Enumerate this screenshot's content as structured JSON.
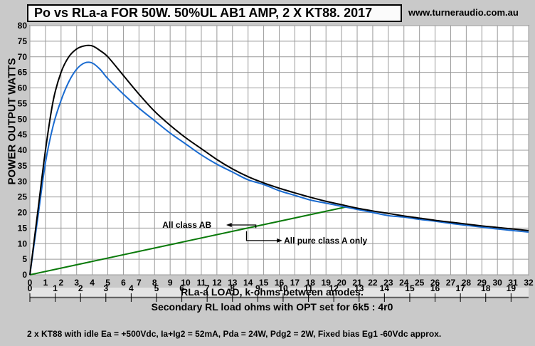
{
  "title": "Po vs RLa-a FOR 50W. 50%UL  AB1 AMP, 2 X KT88. 2017",
  "website": "www.turneraudio.com.au",
  "footnote": "2 x KT88 with idle Ea = +500Vdc, Ia+Ig2 = 52mA, Pda = 24W, Pdg2 = 2W, Fixed bias Eg1 -60Vdc approx.",
  "colors": {
    "background": "#c9c9c9",
    "plot_area": "#ffffff",
    "total": "#000000",
    "class_a": "#1a6bd0",
    "class_ab_limit": "#0a7a0a"
  },
  "chart_data": {
    "type": "line",
    "title": "Po vs RLa-a FOR 50W. 50%UL  AB1 AMP, 2 X KT88. 2017",
    "xlabel": "RLa-a LOAD, k-ohms between anodes.",
    "ylabel": "POWER OUTPUT WATTS",
    "xlim": [
      0,
      32
    ],
    "ylim": [
      0,
      80
    ],
    "grid": true,
    "x_ticks": [
      "0",
      "1",
      "2",
      "3",
      "4",
      "5",
      "6",
      "7",
      "8",
      "9",
      "10",
      "11",
      "12",
      "13",
      "14",
      "15",
      "16",
      "17",
      "18",
      "19",
      "20",
      "21",
      "22",
      "23",
      "24",
      "25",
      "26",
      "27",
      "28",
      "29",
      "30",
      "31",
      "32"
    ],
    "y_ticks": [
      "0",
      "5",
      "10",
      "15",
      "20",
      "25",
      "30",
      "35",
      "40",
      "45",
      "50",
      "55",
      "60",
      "65",
      "70",
      "75",
      "80"
    ],
    "secondary_axis": {
      "label": "Secondary RL load ohms with OPT set for 6k5 : 4r0",
      "ticks": [
        "0",
        "1",
        "2",
        "3",
        "4",
        "5",
        "6",
        "7",
        "8",
        "9",
        "10",
        "11",
        "12",
        "13",
        "14",
        "15",
        "16",
        "17",
        "18",
        "19"
      ],
      "ohms_per_kohm_primary": 0.6154
    },
    "series": [
      {
        "key": "total",
        "x": [
          0,
          0.5,
          1,
          1.5,
          2,
          2.5,
          3,
          3.5,
          4,
          4.5,
          5,
          6,
          7,
          8,
          9,
          10,
          11,
          12,
          13,
          14,
          15,
          16,
          17,
          18,
          19,
          20,
          21,
          22,
          23,
          24,
          25,
          26,
          27,
          28,
          29,
          30,
          31,
          32
        ],
        "y": [
          0,
          20,
          40,
          56,
          65,
          70,
          72.5,
          73.5,
          73.5,
          72,
          70,
          64,
          58,
          52.5,
          48,
          44,
          40.5,
          37,
          34,
          31.5,
          29.5,
          27.8,
          26.3,
          24.9,
          23.6,
          22.5,
          21.4,
          20.5,
          19.7,
          18.9,
          18.2,
          17.5,
          16.9,
          16.3,
          15.7,
          15.2,
          14.7,
          14.2
        ]
      },
      {
        "key": "class_a",
        "x": [
          0,
          0.5,
          1,
          1.5,
          2,
          2.5,
          3,
          3.5,
          4,
          4.5,
          5,
          6,
          7,
          8,
          9,
          10,
          11,
          12,
          13,
          14,
          15,
          16,
          17,
          18,
          19,
          20,
          21,
          22,
          23,
          24,
          25,
          26,
          27,
          28,
          29,
          30,
          31,
          32
        ],
        "y": [
          0,
          18,
          36,
          48,
          56,
          62,
          66,
          68,
          68,
          66,
          63,
          58,
          53.5,
          49.5,
          45.5,
          42,
          38.5,
          35.5,
          33,
          30.5,
          29,
          27,
          25.5,
          24,
          23,
          22,
          21,
          20,
          19,
          18.5,
          17.8,
          17.2,
          16.5,
          15.9,
          15.3,
          14.7,
          14.2,
          13.7
        ]
      },
      {
        "key": "class_ab_limit",
        "x": [
          0,
          20.3
        ],
        "y": [
          0,
          21.8
        ]
      }
    ],
    "annotations": [
      {
        "text": "All class AB",
        "points_to": "total"
      },
      {
        "text": "All pure class A only",
        "points_to": "class_a"
      }
    ]
  }
}
